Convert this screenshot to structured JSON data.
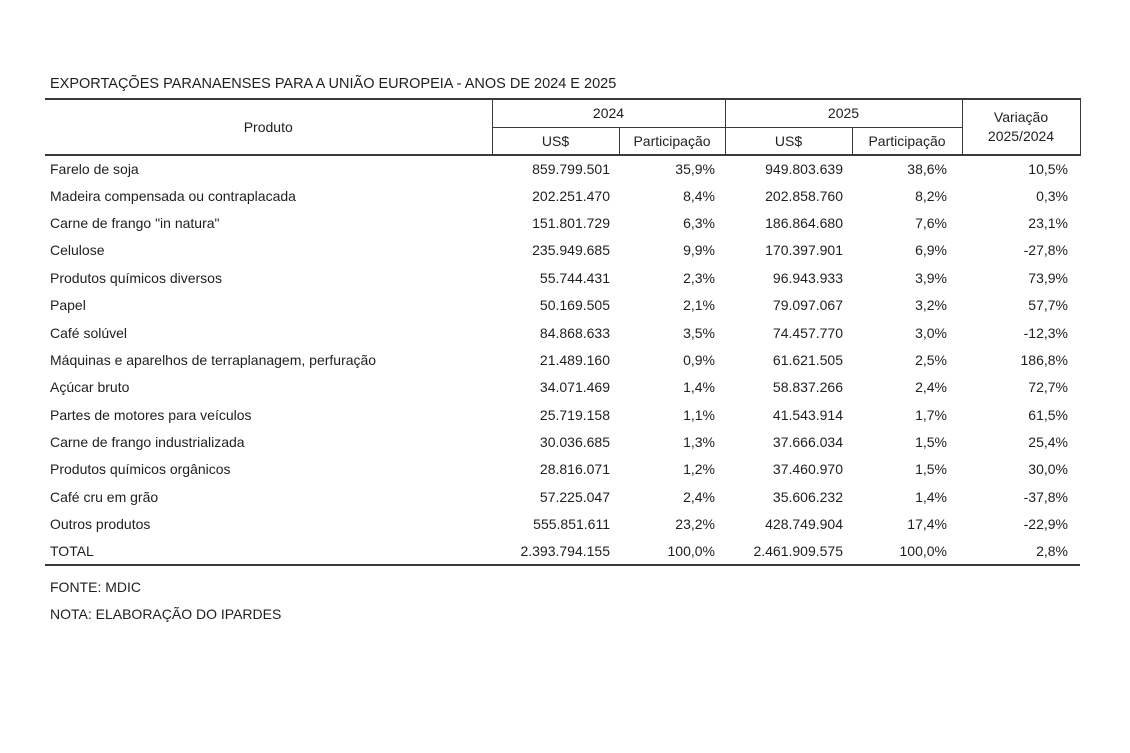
{
  "title": "EXPORTAÇÕES PARANAENSES PARA A UNIÃO EUROPEIA - ANOS DE 2024 E 2025",
  "table": {
    "col_product": "Produto",
    "group_2024": "2024",
    "group_2025": "2025",
    "col_usd": "US$",
    "col_share": "Participação",
    "col_variation_line1": "Variação",
    "col_variation_line2": "2025/2024",
    "rows": [
      {
        "product": "Farelo de soja",
        "usd_2024": "859.799.501",
        "share_2024": "35,9%",
        "usd_2025": "949.803.639",
        "share_2025": "38,6%",
        "variation": "10,5%"
      },
      {
        "product": "Madeira compensada ou contraplacada",
        "usd_2024": "202.251.470",
        "share_2024": "8,4%",
        "usd_2025": "202.858.760",
        "share_2025": "8,2%",
        "variation": "0,3%"
      },
      {
        "product": "Carne de frango \"in natura\"",
        "usd_2024": "151.801.729",
        "share_2024": "6,3%",
        "usd_2025": "186.864.680",
        "share_2025": "7,6%",
        "variation": "23,1%"
      },
      {
        "product": "Celulose",
        "usd_2024": "235.949.685",
        "share_2024": "9,9%",
        "usd_2025": "170.397.901",
        "share_2025": "6,9%",
        "variation": "-27,8%"
      },
      {
        "product": "Produtos químicos diversos",
        "usd_2024": "55.744.431",
        "share_2024": "2,3%",
        "usd_2025": "96.943.933",
        "share_2025": "3,9%",
        "variation": "73,9%"
      },
      {
        "product": "Papel",
        "usd_2024": "50.169.505",
        "share_2024": "2,1%",
        "usd_2025": "79.097.067",
        "share_2025": "3,2%",
        "variation": "57,7%"
      },
      {
        "product": "Café solúvel",
        "usd_2024": "84.868.633",
        "share_2024": "3,5%",
        "usd_2025": "74.457.770",
        "share_2025": "3,0%",
        "variation": "-12,3%"
      },
      {
        "product": "Máquinas e aparelhos de terraplanagem, perfuração",
        "usd_2024": "21.489.160",
        "share_2024": "0,9%",
        "usd_2025": "61.621.505",
        "share_2025": "2,5%",
        "variation": "186,8%"
      },
      {
        "product": "Açúcar bruto",
        "usd_2024": "34.071.469",
        "share_2024": "1,4%",
        "usd_2025": "58.837.266",
        "share_2025": "2,4%",
        "variation": "72,7%"
      },
      {
        "product": "Partes de motores para veículos",
        "usd_2024": "25.719.158",
        "share_2024": "1,1%",
        "usd_2025": "41.543.914",
        "share_2025": "1,7%",
        "variation": "61,5%"
      },
      {
        "product": "Carne de frango industrializada",
        "usd_2024": "30.036.685",
        "share_2024": "1,3%",
        "usd_2025": "37.666.034",
        "share_2025": "1,5%",
        "variation": "25,4%"
      },
      {
        "product": "Produtos químicos orgânicos",
        "usd_2024": "28.816.071",
        "share_2024": "1,2%",
        "usd_2025": "37.460.970",
        "share_2025": "1,5%",
        "variation": "30,0%"
      },
      {
        "product": "Café cru em grão",
        "usd_2024": "57.225.047",
        "share_2024": "2,4%",
        "usd_2025": "35.606.232",
        "share_2025": "1,4%",
        "variation": "-37,8%"
      },
      {
        "product": "Outros produtos",
        "usd_2024": "555.851.611",
        "share_2024": "23,2%",
        "usd_2025": "428.749.904",
        "share_2025": "17,4%",
        "variation": "-22,9%"
      }
    ],
    "total": {
      "product": "TOTAL",
      "usd_2024": "2.393.794.155",
      "share_2024": "100,0%",
      "usd_2025": "2.461.909.575",
      "share_2025": "100,0%",
      "variation": "2,8%"
    }
  },
  "footer": {
    "source": "FONTE: MDIC",
    "note": "NOTA: ELABORAÇÃO DO IPARDES"
  }
}
